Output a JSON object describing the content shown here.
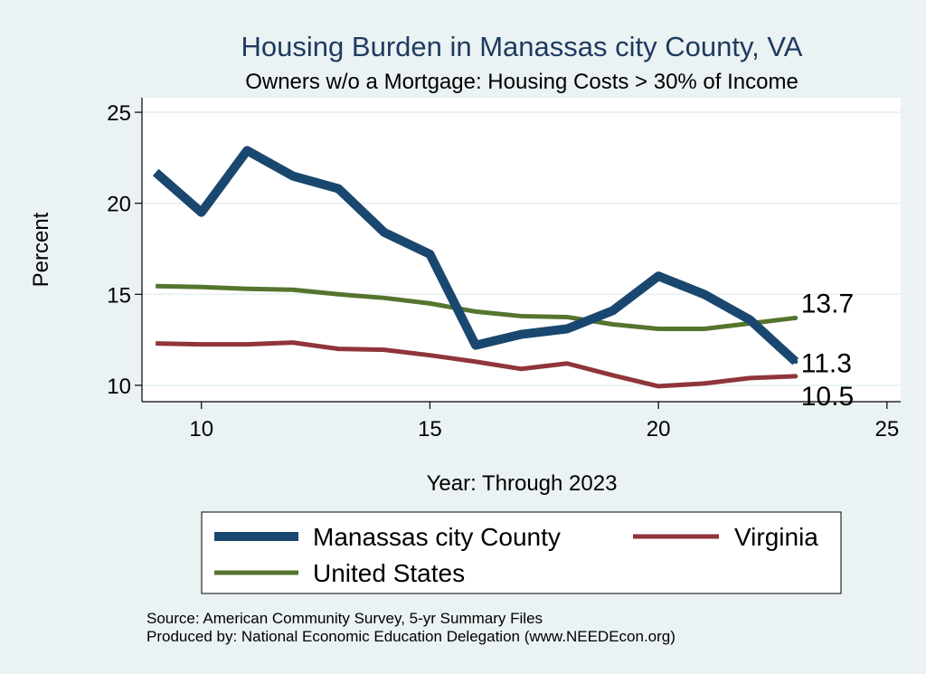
{
  "chart_data": {
    "type": "line",
    "title": "Housing Burden in Manassas city County, VA",
    "subtitle": "Owners w/o a Mortgage: Housing Costs > 30% of Income",
    "xlabel": "Year: Through 2023",
    "ylabel": "Percent",
    "xlim": [
      8.7,
      25.3
    ],
    "ylim": [
      9.1,
      25.8
    ],
    "xticks": [
      10,
      15,
      20,
      25
    ],
    "yticks": [
      10,
      15,
      20,
      25
    ],
    "grid": true,
    "x": [
      9,
      10,
      11,
      12,
      13,
      14,
      15,
      16,
      17,
      18,
      19,
      20,
      21,
      22,
      23
    ],
    "series": [
      {
        "name": "Manassas city County",
        "color": "#1a476f",
        "values": [
          21.7,
          19.5,
          22.9,
          21.5,
          20.8,
          18.4,
          17.2,
          12.2,
          12.8,
          13.1,
          14.1,
          16.0,
          15.0,
          13.6,
          11.3
        ],
        "end_label": "11.3"
      },
      {
        "name": "Virginia",
        "color": "#90353b",
        "values": [
          12.3,
          12.25,
          12.25,
          12.35,
          12.0,
          11.95,
          11.65,
          11.3,
          10.9,
          11.2,
          10.55,
          9.95,
          10.1,
          10.4,
          10.5
        ],
        "end_label": "10.5"
      },
      {
        "name": "United States",
        "color": "#55752f",
        "values": [
          15.45,
          15.4,
          15.3,
          15.25,
          15.0,
          14.8,
          14.5,
          14.05,
          13.8,
          13.75,
          13.35,
          13.1,
          13.1,
          13.4,
          13.7
        ],
        "end_label": "13.7"
      }
    ],
    "legend": {
      "position": "bottom",
      "entries": [
        "Manassas city County",
        "Virginia",
        "United States"
      ]
    },
    "source_lines": [
      "Source: American Community Survey, 5-yr Summary Files",
      "Produced by: National Economic Education Delegation (www.NEEDEcon.org)"
    ]
  }
}
